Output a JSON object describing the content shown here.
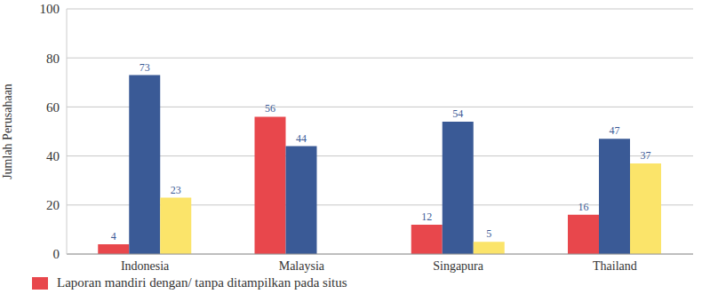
{
  "chart_data": {
    "type": "bar",
    "y_label": "Jumlah Perusahaan",
    "categories": [
      "Indonesia",
      "Malaysia",
      "Singapura",
      "Thailand"
    ],
    "series": [
      {
        "name": "Laporan mandiri dengan/ tanpa ditampilkan pada situs",
        "color": "#e8474c",
        "values": [
          4,
          56,
          12,
          16
        ]
      },
      {
        "color": "#3a5a96",
        "values": [
          73,
          44,
          54,
          47
        ]
      },
      {
        "color": "#fbe46a",
        "values": [
          23,
          0,
          5,
          37
        ]
      }
    ],
    "ylim": [
      0,
      100
    ],
    "yticks": [
      0,
      20,
      40,
      60,
      80,
      100
    ],
    "grid": true,
    "data_labels": true,
    "legend": "bottom-left"
  }
}
